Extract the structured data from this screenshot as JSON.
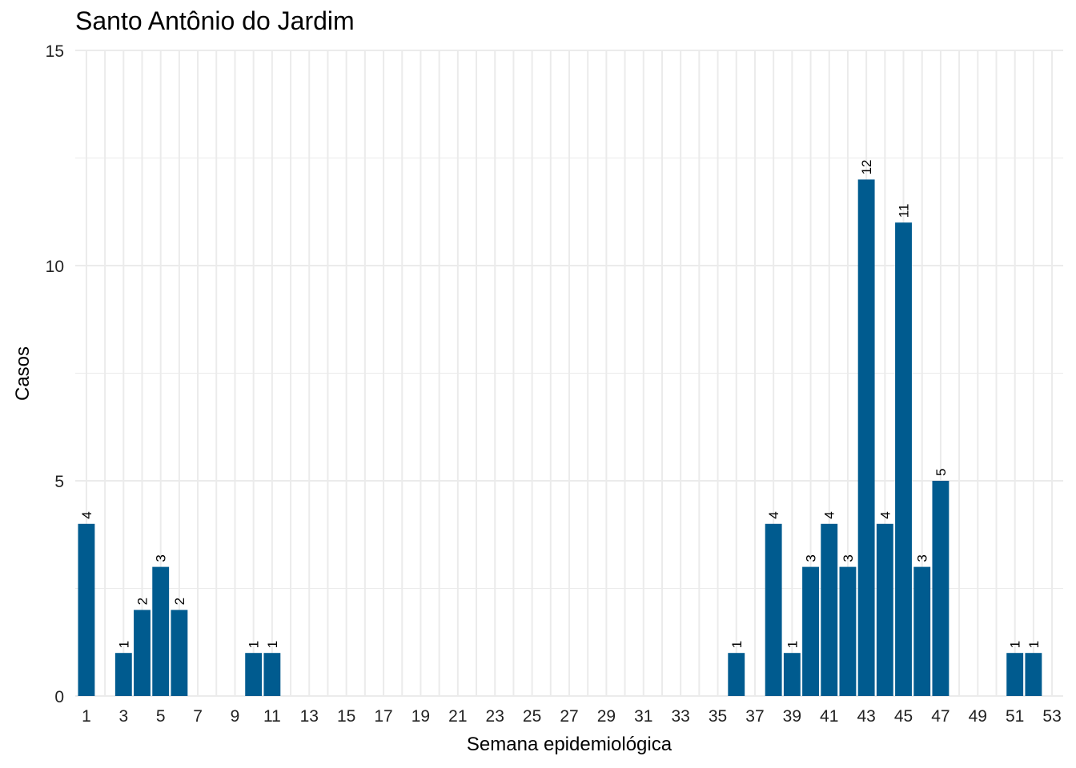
{
  "chart_data": {
    "type": "bar",
    "title": "Santo Antônio do Jardim",
    "xlabel": "Semana epidemiológica",
    "ylabel": "Casos",
    "categories": [
      1,
      2,
      3,
      4,
      5,
      6,
      7,
      8,
      9,
      10,
      11,
      12,
      13,
      14,
      15,
      16,
      17,
      18,
      19,
      20,
      21,
      22,
      23,
      24,
      25,
      26,
      27,
      28,
      29,
      30,
      31,
      32,
      33,
      34,
      35,
      36,
      37,
      38,
      39,
      40,
      41,
      42,
      43,
      44,
      45,
      46,
      47,
      48,
      49,
      50,
      51,
      52,
      53
    ],
    "values": [
      4,
      0,
      1,
      2,
      3,
      2,
      0,
      0,
      0,
      1,
      1,
      0,
      0,
      0,
      0,
      0,
      0,
      0,
      0,
      0,
      0,
      0,
      0,
      0,
      0,
      0,
      0,
      0,
      0,
      0,
      0,
      0,
      0,
      0,
      0,
      1,
      0,
      4,
      1,
      3,
      4,
      3,
      12,
      4,
      11,
      3,
      5,
      0,
      0,
      0,
      1,
      1,
      0
    ],
    "x_tick_labels": [
      "1",
      "3",
      "5",
      "7",
      "9",
      "11",
      "13",
      "15",
      "17",
      "19",
      "21",
      "23",
      "25",
      "27",
      "29",
      "31",
      "33",
      "35",
      "37",
      "39",
      "41",
      "43",
      "45",
      "47",
      "49",
      "51",
      "53"
    ],
    "y_ticks": [
      0,
      5,
      10,
      15
    ],
    "ylim": [
      0,
      15
    ],
    "grid": true,
    "legend": "none",
    "bar_color": "#005b8f",
    "grid_color": "#ebebeb"
  }
}
